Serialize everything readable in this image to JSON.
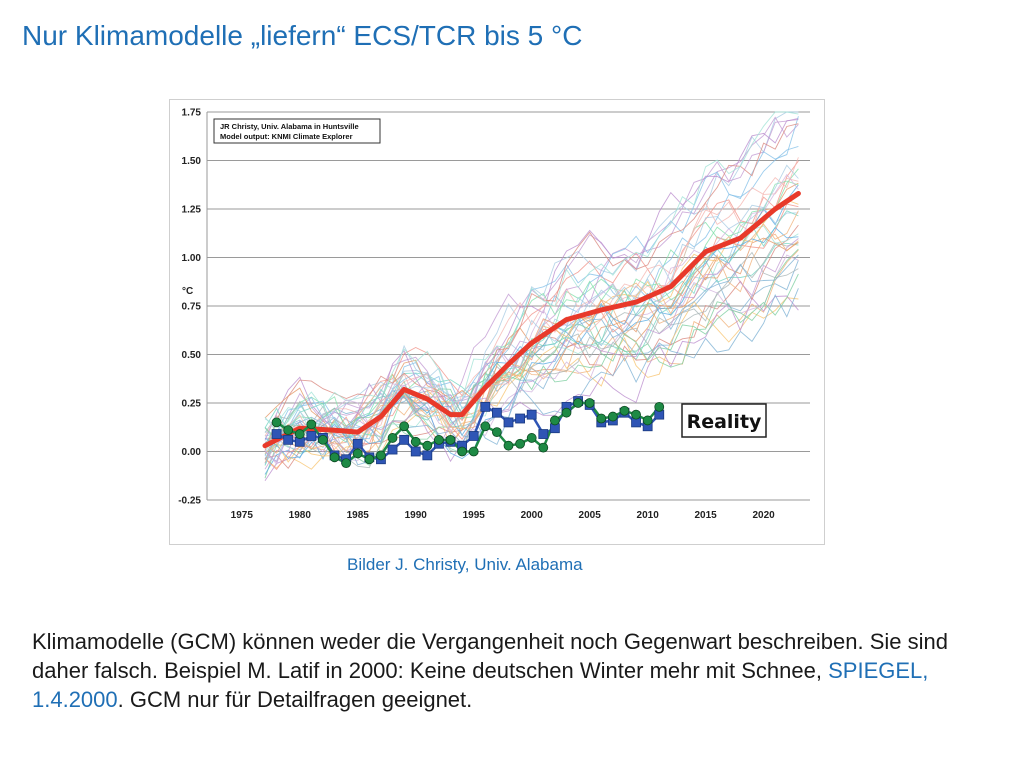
{
  "slide": {
    "title": "Nur Klimamodelle „liefern“ ECS/TCR bis 5 °C",
    "caption": "Bilder J. Christy, Univ. Alabama",
    "body_part1": "Klimamodelle (GCM) können weder die Vergangenheit noch Gegenwart beschreiben. Sie sind daher falsch. Beispiel M. Latif in 2000: Keine deutschen Winter mehr mit Schnee,",
    "body_link": "SPIEGEL, 1.4.2000",
    "body_part2": ".  GCM nur für Detailfragen geeignet."
  },
  "colors": {
    "accent": "#1f6fb5",
    "model_mean": "#e8392a",
    "balloon_series": "#2f55b5",
    "satellite_series": "#1e8a45"
  },
  "chart_data": {
    "type": "line",
    "ylabel": "°C",
    "xlim": [
      1972,
      2024
    ],
    "ylim": [
      -0.25,
      1.75
    ],
    "grid": true,
    "x_ticks": [
      1975,
      1980,
      1985,
      1990,
      1995,
      2000,
      2005,
      2010,
      2015,
      2020
    ],
    "y_ticks": [
      -0.25,
      0.0,
      0.25,
      0.5,
      0.75,
      1.0,
      1.25,
      1.5,
      1.75
    ],
    "x_tick_labels": [
      "1975",
      "1980",
      "1985",
      "1990",
      "1995",
      "2000",
      "2005",
      "2010",
      "2015",
      "2020"
    ],
    "y_tick_labels": [
      "-0.25",
      "0.00",
      "0.25",
      "0.50",
      "0.75",
      "1.00",
      "1.25",
      "1.50",
      "1.75"
    ],
    "source_note": [
      "JR Christy, Univ. Alabama in Huntsville",
      "Model output: KNMI Climate Explorer"
    ],
    "reality_label": "Reality",
    "model_mean": {
      "x": [
        1977,
        1980,
        1983,
        1985,
        1987,
        1989,
        1991,
        1993,
        1994,
        1996,
        1998,
        2000,
        2003,
        2006,
        2009,
        2012,
        2015,
        2018,
        2021,
        2023
      ],
      "values": [
        0.03,
        0.12,
        0.11,
        0.1,
        0.18,
        0.32,
        0.27,
        0.19,
        0.19,
        0.33,
        0.45,
        0.56,
        0.68,
        0.73,
        0.77,
        0.85,
        1.03,
        1.1,
        1.25,
        1.33
      ]
    },
    "balloon_series": {
      "x": [
        1978,
        1979,
        1980,
        1981,
        1982,
        1983,
        1984,
        1985,
        1986,
        1987,
        1988,
        1989,
        1990,
        1991,
        1992,
        1993,
        1994,
        1995,
        1996,
        1997,
        1998,
        1999,
        2000,
        2001,
        2002,
        2003,
        2004,
        2005,
        2006,
        2007,
        2008,
        2009,
        2010,
        2011
      ],
      "values": [
        0.09,
        0.06,
        0.05,
        0.08,
        0.07,
        -0.02,
        -0.04,
        0.04,
        -0.03,
        -0.04,
        0.01,
        0.06,
        0.0,
        -0.02,
        0.04,
        0.05,
        0.03,
        0.08,
        0.23,
        0.2,
        0.15,
        0.17,
        0.19,
        0.09,
        0.12,
        0.23,
        0.26,
        0.24,
        0.15,
        0.16,
        0.2,
        0.15,
        0.13,
        0.19
      ]
    },
    "satellite_series": {
      "x": [
        1978,
        1979,
        1980,
        1981,
        1982,
        1983,
        1984,
        1985,
        1986,
        1987,
        1988,
        1989,
        1990,
        1991,
        1992,
        1993,
        1994,
        1995,
        1996,
        1997,
        1998,
        1999,
        2000,
        2001,
        2002,
        2003,
        2004,
        2005,
        2006,
        2007,
        2008,
        2009,
        2010,
        2011
      ],
      "values": [
        0.15,
        0.11,
        0.09,
        0.14,
        0.06,
        -0.03,
        -0.06,
        -0.01,
        -0.04,
        -0.02,
        0.07,
        0.13,
        0.05,
        0.03,
        0.06,
        0.06,
        0.0,
        0.0,
        0.13,
        0.1,
        0.03,
        0.04,
        0.07,
        0.02,
        0.16,
        0.2,
        0.25,
        0.25,
        0.17,
        0.18,
        0.21,
        0.19,
        0.16,
        0.23
      ]
    }
  }
}
